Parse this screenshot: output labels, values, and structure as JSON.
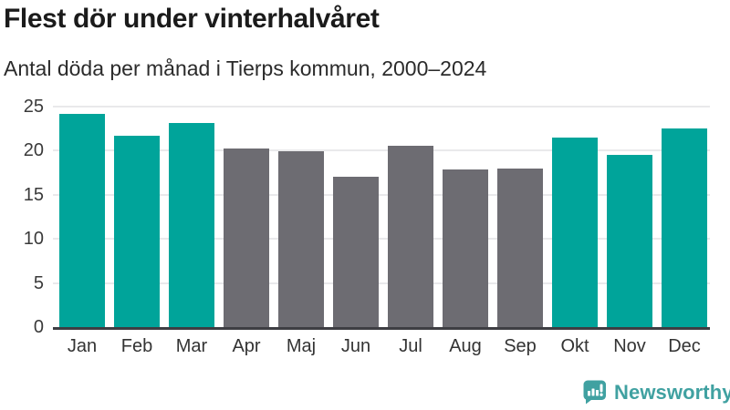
{
  "header": {
    "title": "Flest dör under vinterhalvåret",
    "subtitle": "Antal döda per månad i Tierps kommun, 2000–2024"
  },
  "chart_data": {
    "type": "bar",
    "title": "Flest dör under vinterhalvåret",
    "subtitle": "Antal döda per månad i Tierps kommun, 2000–2024",
    "categories": [
      "Jan",
      "Feb",
      "Mar",
      "Apr",
      "Maj",
      "Jun",
      "Jul",
      "Aug",
      "Sep",
      "Okt",
      "Nov",
      "Dec"
    ],
    "values": [
      24.2,
      21.7,
      23.1,
      20.2,
      19.9,
      17.0,
      20.6,
      17.9,
      18.0,
      21.5,
      19.5,
      22.5
    ],
    "highlighted": [
      true,
      true,
      true,
      false,
      false,
      false,
      false,
      false,
      false,
      true,
      true,
      true
    ],
    "highlight_color": "#00a49a",
    "base_color": "#6d6c72",
    "xlabel": "",
    "ylabel": "",
    "ylim": [
      0,
      25
    ],
    "yticks": [
      0,
      5,
      10,
      15,
      20,
      25
    ],
    "grid": "horizontal",
    "legend": "none",
    "gridline_color": "#e9e9eb",
    "axis_color": "#3e3e43"
  },
  "footer": {
    "brand_label": "Newsworthy",
    "brand_color": "#40a1a1",
    "logo_icon": "newsworthy-speech-bubble-bar-chart-icon"
  }
}
